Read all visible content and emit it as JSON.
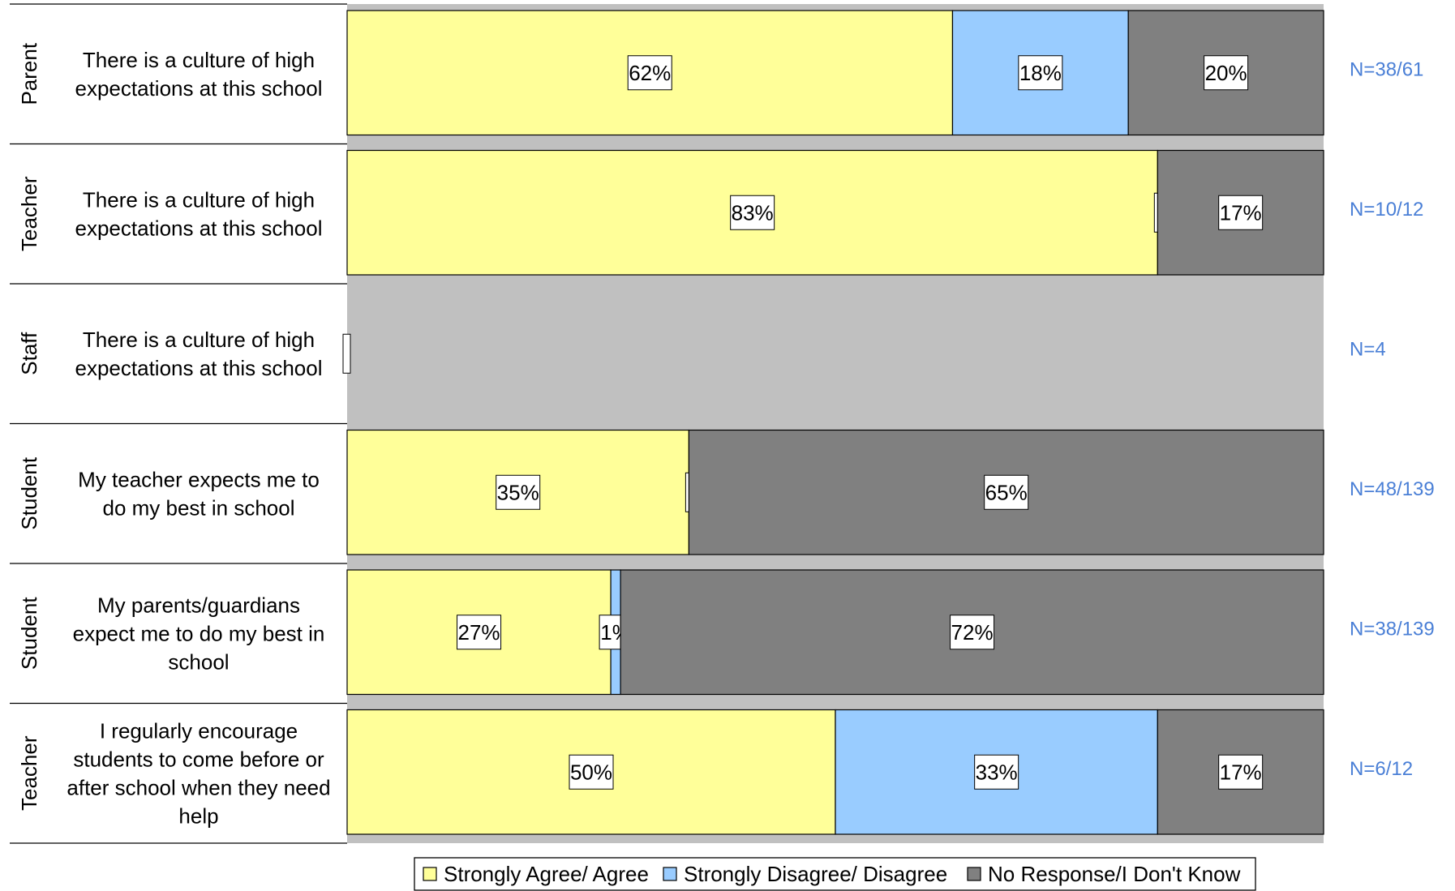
{
  "colors": {
    "agree": "#ffff99",
    "disagree": "#99ccff",
    "no_response": "#808080",
    "no_data": "#c0c0c0",
    "n_text": "#4a7fd6"
  },
  "chart_data": {
    "type": "bar",
    "orientation": "horizontal",
    "stacked": true,
    "xlim": [
      0,
      100
    ],
    "grid": false,
    "legend_position": "bottom",
    "series_names": [
      "Strongly Agree/ Agree",
      "Strongly Disagree/ Disagree",
      "No Response/I Don't Know"
    ],
    "rows": [
      {
        "group": "Parent",
        "statement": [
          "There is a culture of high",
          "expectations at this school"
        ],
        "values": [
          62,
          18,
          20
        ],
        "labels": [
          "62%",
          "18%",
          "20%"
        ],
        "n": "N=38/61"
      },
      {
        "group": "Teacher",
        "statement": [
          "There is a culture of high",
          "expectations at this school"
        ],
        "values": [
          83,
          0,
          17
        ],
        "labels": [
          "83%",
          "",
          "17%"
        ],
        "n": "N=10/12"
      },
      {
        "group": "Staff",
        "statement": [
          "There is a culture of high",
          "expectations at this school"
        ],
        "values": [
          0,
          0,
          0
        ],
        "labels": [
          "",
          "",
          ""
        ],
        "n": "N=4"
      },
      {
        "group": "Student",
        "statement": [
          "My teacher expects me to",
          "do my best in school"
        ],
        "values": [
          35,
          0,
          65
        ],
        "labels": [
          "35%",
          "",
          "65%"
        ],
        "n": "N=48/139"
      },
      {
        "group": "Student",
        "statement": [
          "My parents/guardians",
          "expect me to do my best in",
          "school"
        ],
        "values": [
          27,
          1,
          72
        ],
        "labels": [
          "27%",
          "1%",
          "72%"
        ],
        "n": "N=38/139"
      },
      {
        "group": "Teacher",
        "statement": [
          "I regularly encourage",
          "students to come before or",
          "after school when they need",
          "help"
        ],
        "values": [
          50,
          33,
          17
        ],
        "labels": [
          "50%",
          "33%",
          "17%"
        ],
        "n": "N=6/12"
      }
    ]
  }
}
